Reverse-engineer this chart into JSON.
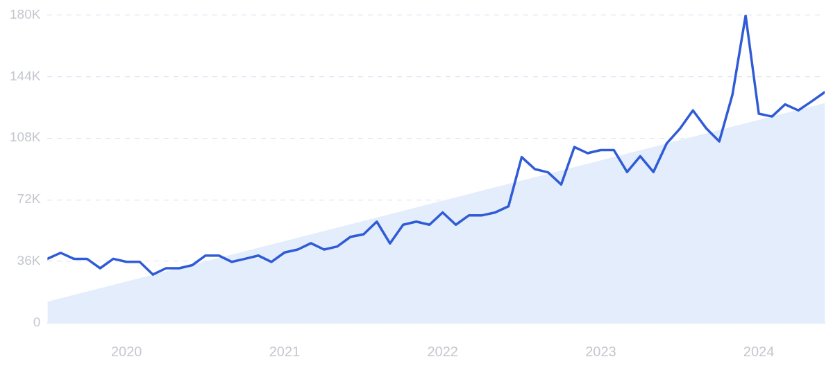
{
  "chart_data": {
    "type": "line",
    "xlim": [
      "2019-07",
      "2024-06"
    ],
    "xticks": [
      "2020",
      "2021",
      "2022",
      "2023",
      "2024"
    ],
    "ylim": [
      0,
      180000
    ],
    "yticks": [
      0,
      {
        "value": 36000,
        "label": "36K"
      },
      {
        "value": 72000,
        "label": "72K"
      },
      {
        "value": 108000,
        "label": "108K"
      },
      {
        "value": 144000,
        "label": "144K"
      },
      {
        "value": 180000,
        "label": "180K"
      }
    ],
    "grid": "y",
    "legend": false,
    "marker": "none",
    "line_style": "solid",
    "series": [
      {
        "type": "line",
        "color": "#2f5bd6",
        "x": [
          "2019-07",
          "2019-08",
          "2019-09",
          "2019-10",
          "2019-11",
          "2019-12",
          "2020-01",
          "2020-02",
          "2020-03",
          "2020-04",
          "2020-05",
          "2020-06",
          "2020-07",
          "2020-08",
          "2020-09",
          "2020-10",
          "2020-11",
          "2020-12",
          "2021-01",
          "2021-02",
          "2021-03",
          "2021-04",
          "2021-05",
          "2021-06",
          "2021-07",
          "2021-08",
          "2021-09",
          "2021-10",
          "2021-11",
          "2021-12",
          "2022-01",
          "2022-02",
          "2022-03",
          "2022-04",
          "2022-05",
          "2022-06",
          "2022-07",
          "2022-08",
          "2022-09",
          "2022-10",
          "2022-11",
          "2022-12",
          "2023-01",
          "2023-02",
          "2023-03",
          "2023-04",
          "2023-05",
          "2023-06",
          "2023-07",
          "2023-08",
          "2023-09",
          "2023-10",
          "2023-11",
          "2023-12",
          "2024-01",
          "2024-02",
          "2024-03",
          "2024-04",
          "2024-05",
          "2024-06"
        ],
        "values": [
          37500,
          41000,
          37500,
          37500,
          32000,
          37500,
          35700,
          35700,
          28300,
          32000,
          32000,
          33800,
          39400,
          39400,
          35700,
          37500,
          39400,
          35700,
          41200,
          42900,
          46600,
          42900,
          44700,
          50300,
          51800,
          59200,
          46500,
          57400,
          59200,
          57400,
          64600,
          57400,
          62900,
          62900,
          64600,
          68200,
          96900,
          89900,
          88000,
          80900,
          102800,
          99200,
          101000,
          101000,
          88200,
          97400,
          88200,
          104800,
          113400,
          124200,
          113800,
          106100,
          133400,
          179600,
          122300,
          120600,
          127700,
          124200,
          129400,
          134800
        ]
      },
      {
        "type": "area",
        "color": "#e3edfb",
        "x": [
          "2019-07",
          "2024-06"
        ],
        "values": [
          12400,
          128400
        ]
      }
    ]
  }
}
